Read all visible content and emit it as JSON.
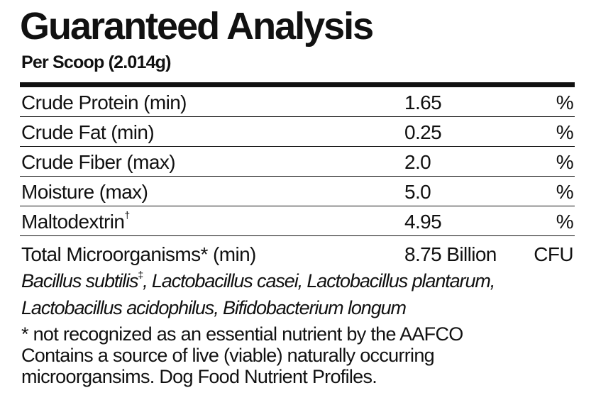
{
  "header": {
    "title": "Guaranteed Analysis",
    "subtitle": "Per Scoop (2.014g)"
  },
  "rows": [
    {
      "label": "Crude Protein (min)",
      "value": "1.65",
      "unit": "%",
      "mark": ""
    },
    {
      "label": "Crude Fat (min)",
      "value": "0.25",
      "unit": "%",
      "mark": ""
    },
    {
      "label": "Crude Fiber (max)",
      "value": "2.0",
      "unit": "%",
      "mark": ""
    },
    {
      "label": "Moisture (max)",
      "value": "5.0",
      "unit": "%",
      "mark": ""
    },
    {
      "label": "Maltodextrin",
      "value": "4.95",
      "unit": "%",
      "mark": "†"
    }
  ],
  "total": {
    "label": "Total Microorganisms* (min)",
    "value": "8.75 Billion",
    "unit": "CFU"
  },
  "organisms": {
    "first": "Bacillus subtilis",
    "first_mark": "‡",
    "line1_rest": ", Lactobacillus casei, Lactobacillus plantarum,",
    "line2": "Lactobacillus acidophilus, Bifidobacterium longum"
  },
  "footnotes": {
    "line1": "* not recognized as an essential nutrient by the AAFCO",
    "line2": "Contains a source of live (viable) naturally occurring",
    "line3": "microorgansims. Dog Food Nutrient Profiles."
  }
}
